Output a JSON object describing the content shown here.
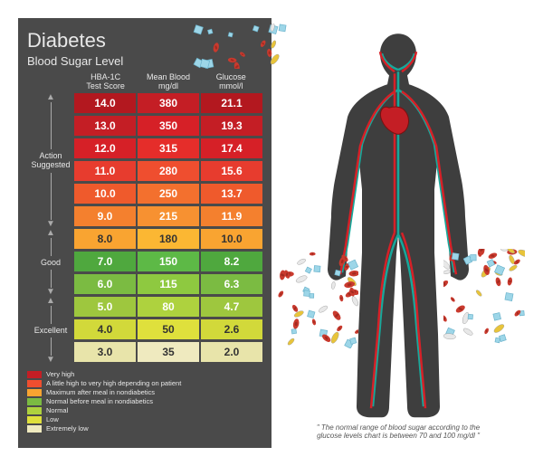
{
  "title": "Diabetes",
  "subtitle": "Blood Sugar Level",
  "columns": [
    {
      "label_top": "HBA-1C",
      "label_bottom": "Test Score"
    },
    {
      "label_top": "Mean Blood",
      "label_bottom": "mg/dl"
    },
    {
      "label_top": "Glucose",
      "label_bottom": "mmol/l"
    }
  ],
  "side_labels": [
    {
      "text": "Action\nSuggested",
      "rows": 6
    },
    {
      "text": "Good",
      "rows": 3
    },
    {
      "text": "Excellent",
      "rows": 3
    }
  ],
  "rows": [
    {
      "hba1c": "14.0",
      "mean": "380",
      "glucose": "21.1",
      "colors": [
        "#b3181f",
        "#c41e25",
        "#b3181f"
      ]
    },
    {
      "hba1c": "13.0",
      "mean": "350",
      "glucose": "19.3",
      "colors": [
        "#c41e25",
        "#d62027",
        "#c41e25"
      ]
    },
    {
      "hba1c": "12.0",
      "mean": "315",
      "glucose": "17.4",
      "colors": [
        "#d62027",
        "#e52d2a",
        "#d62027"
      ]
    },
    {
      "hba1c": "11.0",
      "mean": "280",
      "glucose": "15.6",
      "colors": [
        "#e73c2e",
        "#ef4e2f",
        "#e73c2e"
      ]
    },
    {
      "hba1c": "10.0",
      "mean": "250",
      "glucose": "13.7",
      "colors": [
        "#ef5a2c",
        "#f3702e",
        "#ef5a2c"
      ]
    },
    {
      "hba1c": "9.0",
      "mean": "215",
      "glucose": "11.9",
      "colors": [
        "#f4802e",
        "#f79131",
        "#f4802e"
      ]
    },
    {
      "hba1c": "8.0",
      "mean": "180",
      "glucose": "10.0",
      "colors": [
        "#f9a431",
        "#fbb733",
        "#f9a431"
      ],
      "text": "#333"
    },
    {
      "hba1c": "7.0",
      "mean": "150",
      "glucose": "8.2",
      "colors": [
        "#4fa83e",
        "#5db946",
        "#4fa83e"
      ]
    },
    {
      "hba1c": "6.0",
      "mean": "115",
      "glucose": "6.3",
      "colors": [
        "#7bbb42",
        "#8ec940",
        "#7bbb42"
      ]
    },
    {
      "hba1c": "5.0",
      "mean": "80",
      "glucose": "4.7",
      "colors": [
        "#9ec73e",
        "#aed23e",
        "#9ec73e"
      ]
    },
    {
      "hba1c": "4.0",
      "mean": "50",
      "glucose": "2.6",
      "colors": [
        "#d2d93a",
        "#dfe03c",
        "#d2d93a"
      ],
      "text": "#333"
    },
    {
      "hba1c": "3.0",
      "mean": "35",
      "glucose": "2.0",
      "colors": [
        "#e8e4aa",
        "#efeabf",
        "#e8e4aa"
      ],
      "text": "#333"
    }
  ],
  "legend": [
    {
      "color": "#c41e25",
      "label": "Very high"
    },
    {
      "color": "#ef4e2f",
      "label": "A little high to very high depending on patient"
    },
    {
      "color": "#f9a431",
      "label": "Maximum after meal in nondiabetics"
    },
    {
      "color": "#7bbb42",
      "label": "Normal before meal in nondiabetics"
    },
    {
      "color": "#aed23e",
      "label": "Normal"
    },
    {
      "color": "#dfe03c",
      "label": "Low"
    },
    {
      "color": "#efeabf",
      "label": "Extremely low"
    }
  ],
  "footnote": "\" The normal range of blood sugar according to the glucose levels chart is between 70 and 100 mg/dl \"",
  "body_figure": {
    "silhouette_color": "#3e3e3e",
    "artery_color": "#d62027",
    "vein_color": "#17a89b",
    "heart_color": "#c41e25"
  },
  "scatter_colors": {
    "cube": "#9dd6e8",
    "blood_cell": "#c93a2e",
    "pill_yellow": "#e8c43a",
    "pill_white": "#e8e8e8"
  }
}
